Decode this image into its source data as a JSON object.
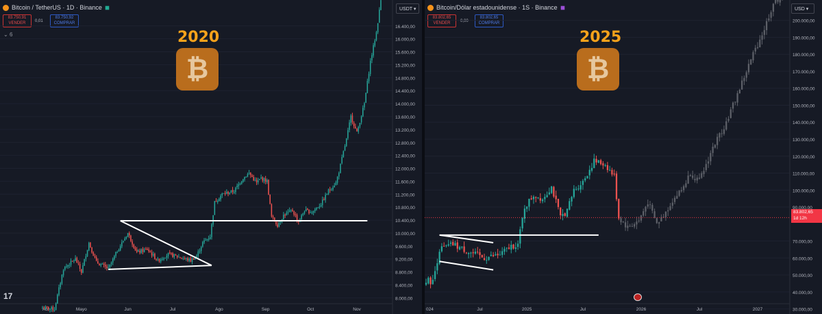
{
  "chart_data": [
    {
      "type": "candlestick",
      "title": "Bitcoin / TetherUS · 1D · Binance",
      "currency": "USDT",
      "badge_year": "2020",
      "sell_box": {
        "value": "83.750,91",
        "label": "VENDER"
      },
      "buy_box": {
        "value": "83.750,92",
        "label": "COMPRAR"
      },
      "spread": "0,01",
      "indicator_count": "6",
      "y_ticks": [
        "16.400,00",
        "16.000,00",
        "15.600,00",
        "15.200,00",
        "14.800,00",
        "14.400,00",
        "14.000,00",
        "13.600,00",
        "13.200,00",
        "12.800,00",
        "12.400,00",
        "12.000,00",
        "11.600,00",
        "11.200,00",
        "10.800,00",
        "10.400,00",
        "10.000,00",
        "9.600,00",
        "9.200,00",
        "8.800,00",
        "8.400,00",
        "8.000,00"
      ],
      "y_tick_values": [
        16400,
        16000,
        15600,
        15200,
        14800,
        14400,
        14000,
        13600,
        13200,
        12800,
        12400,
        12000,
        11600,
        11200,
        10800,
        10400,
        10000,
        9600,
        9200,
        8800,
        8400,
        8000
      ],
      "ylim": [
        7500,
        17200
      ],
      "x_ticks": [
        "Abr",
        "Mayo",
        "Jun",
        "Jul",
        "Ago",
        "Sep",
        "Oct",
        "Nov"
      ],
      "x_tick_index": [
        0,
        26,
        57,
        87,
        118,
        149,
        179,
        210
      ],
      "n_candles": 227,
      "close_path": [
        [
          0,
          7700
        ],
        [
          8,
          7650
        ],
        [
          14,
          8900
        ],
        [
          22,
          9200
        ],
        [
          26,
          8800
        ],
        [
          31,
          9700
        ],
        [
          36,
          9100
        ],
        [
          44,
          8900
        ],
        [
          50,
          9450
        ],
        [
          57,
          10000
        ],
        [
          63,
          9400
        ],
        [
          70,
          9500
        ],
        [
          77,
          9150
        ],
        [
          84,
          9350
        ],
        [
          92,
          9250
        ],
        [
          99,
          9150
        ],
        [
          103,
          9300
        ],
        [
          107,
          9700
        ],
        [
          112,
          9900
        ],
        [
          115,
          10950
        ],
        [
          120,
          11200
        ],
        [
          128,
          11300
        ],
        [
          134,
          11700
        ],
        [
          138,
          11850
        ],
        [
          143,
          11550
        ],
        [
          146,
          11700
        ],
        [
          150,
          11600
        ],
        [
          153,
          10500
        ],
        [
          157,
          10250
        ],
        [
          161,
          10550
        ],
        [
          167,
          10700
        ],
        [
          171,
          10350
        ],
        [
          175,
          10700
        ],
        [
          180,
          10650
        ],
        [
          186,
          10900
        ],
        [
          191,
          11300
        ],
        [
          196,
          11550
        ],
        [
          198,
          11900
        ],
        [
          203,
          12900
        ],
        [
          206,
          13600
        ],
        [
          210,
          13100
        ],
        [
          215,
          14000
        ],
        [
          219,
          15300
        ],
        [
          223,
          16200
        ],
        [
          226,
          17200
        ]
      ],
      "lines": [
        {
          "name": "resistance",
          "from": [
            52,
            10380
          ],
          "to": [
            217,
            10380
          ]
        },
        {
          "name": "triangle-top",
          "from": [
            52,
            10380
          ],
          "to": [
            113,
            9000
          ]
        },
        {
          "name": "triangle-bottom",
          "from": [
            44,
            8880
          ],
          "to": [
            113,
            9000
          ]
        }
      ]
    },
    {
      "type": "candlestick",
      "title": "Bitcoin/Dólar estadounidense · 1S · Binance",
      "currency": "USD",
      "badge_year": "2025",
      "sell_box": {
        "value": "83.802,65",
        "label": "VENDER"
      },
      "buy_box": {
        "value": "83.802,65",
        "label": "COMPRAR"
      },
      "spread": "0,00",
      "last_price": "83.802,65",
      "last_price_countdown": "1d 12h",
      "y_ticks": [
        "200.000,00",
        "190.000,00",
        "180.000,00",
        "170.000,00",
        "160.000,00",
        "150.000,00",
        "140.000,00",
        "130.000,00",
        "120.000,00",
        "110.000,00",
        "100.000,00",
        "90.000,00",
        "70.000,00",
        "60.000,00",
        "50.000,00",
        "40.000,00",
        "30.000,00"
      ],
      "y_tick_values": [
        200000,
        190000,
        180000,
        170000,
        160000,
        150000,
        140000,
        130000,
        120000,
        110000,
        100000,
        90000,
        70000,
        60000,
        50000,
        40000,
        30000
      ],
      "ylim": [
        27000,
        212000
      ],
      "x_ticks": [
        "024",
        "Jul",
        "2025",
        "Jul",
        "2026",
        "Jul",
        "2027"
      ],
      "x_tick_index": [
        0,
        24,
        45,
        70,
        96,
        122,
        148
      ],
      "n_candles": 160,
      "n_real_candles": 86,
      "real_close_path": [
        [
          0,
          47000
        ],
        [
          3,
          46000
        ],
        [
          6,
          65000
        ],
        [
          12,
          68000
        ],
        [
          20,
          63000
        ],
        [
          26,
          60000
        ],
        [
          33,
          62000
        ],
        [
          38,
          67000
        ],
        [
          41,
          68000
        ],
        [
          44,
          90000
        ],
        [
          48,
          97000
        ],
        [
          52,
          95000
        ],
        [
          56,
          102000
        ],
        [
          60,
          84000
        ],
        [
          63,
          88000
        ],
        [
          66,
          100000
        ],
        [
          70,
          105000
        ],
        [
          75,
          117000
        ],
        [
          80,
          115000
        ],
        [
          84,
          108000
        ],
        [
          86,
          83800
        ]
      ],
      "projection_path": [
        [
          86,
          83800
        ],
        [
          90,
          78000
        ],
        [
          95,
          82000
        ],
        [
          99,
          93000
        ],
        [
          103,
          80000
        ],
        [
          106,
          85000
        ],
        [
          110,
          94000
        ],
        [
          114,
          100000
        ],
        [
          118,
          110000
        ],
        [
          122,
          105000
        ],
        [
          128,
          125000
        ],
        [
          134,
          140000
        ],
        [
          140,
          160000
        ],
        [
          146,
          180000
        ],
        [
          151,
          195000
        ],
        [
          155,
          210000
        ],
        [
          159,
          215000
        ]
      ],
      "lines": [
        {
          "name": "resistance",
          "from": [
            6,
            73500
          ],
          "to": [
            77,
            73500
          ]
        },
        {
          "name": "channel-top",
          "from": [
            6,
            73500
          ],
          "to": [
            30,
            69000
          ]
        },
        {
          "name": "channel-bottom",
          "from": [
            6,
            58000
          ],
          "to": [
            30,
            53000
          ]
        }
      ]
    }
  ],
  "tv_logo": "17"
}
